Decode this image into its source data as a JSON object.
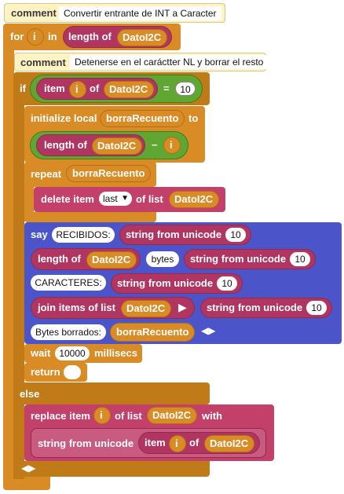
{
  "blocks": {
    "comment1": {
      "keyword": "comment",
      "text": "Convertir entrante de INT a Caracter"
    },
    "for_loop": {
      "keyword_for": "for",
      "var": "i",
      "keyword_in": "in",
      "length_of": "length of",
      "list": "DatoI2C"
    },
    "comment2": {
      "keyword": "comment",
      "text": "Detenerse en el caráctter NL y borrar el resto"
    },
    "if_block": {
      "keyword": "if",
      "item": "item",
      "var": "i",
      "of": "of",
      "list": "DatoI2C",
      "op": "=",
      "value": "10"
    },
    "init": {
      "keyword": "initialize local",
      "var": "borraRecuento",
      "to": "to",
      "length_of": "length of",
      "list": "DatoI2C",
      "minus": "−",
      "var2": "i"
    },
    "repeat": {
      "keyword": "repeat",
      "var": "borraRecuento"
    },
    "delete": {
      "keyword": "delete item",
      "which": "last",
      "of_list": "of list",
      "list": "DatoI2C"
    },
    "say": {
      "keyword": "say",
      "label1": "RECIBIDOS:",
      "sfu": "string from unicode",
      "n10": "10",
      "length_of": "length of",
      "list": "DatoI2C",
      "bytes": "bytes",
      "label2": "CARACTERES:",
      "join": "join items of list",
      "label3": "Bytes borrados:",
      "var": "borraRecuento"
    },
    "wait": {
      "keyword": "wait",
      "value": "10000",
      "unit": "millisecs"
    },
    "return": {
      "keyword": "return",
      "value": ""
    },
    "else": {
      "keyword": "else"
    },
    "replace": {
      "keyword": "replace item",
      "var": "i",
      "of_list": "of list",
      "list": "DatoI2C",
      "with": "with",
      "sfu": "string from unicode",
      "item": "item",
      "var2": "i",
      "of": "of",
      "list2": "DatoI2C"
    }
  },
  "colors": {
    "control": "#d98c25",
    "list": "#c2406a",
    "operator": "#5fa632",
    "io": "#4b55c9",
    "comment": "#fff3c4"
  }
}
